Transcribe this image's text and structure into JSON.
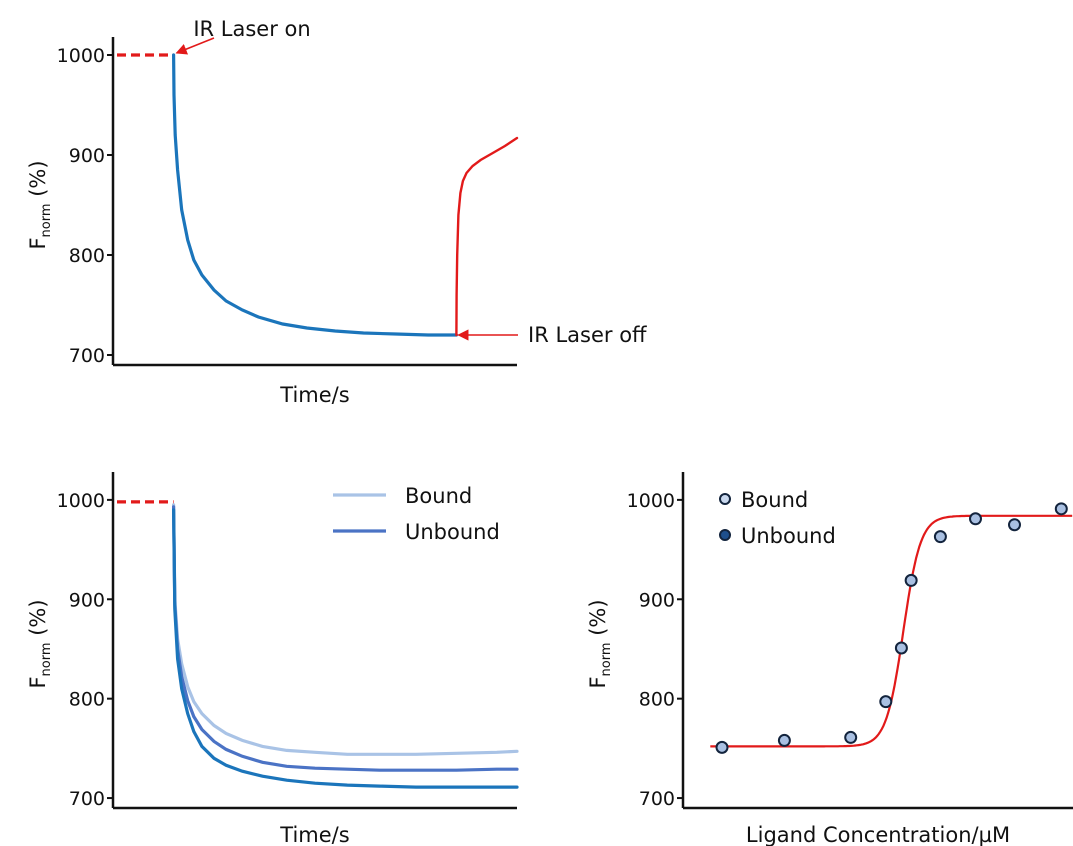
{
  "chart_data": [
    {
      "id": "top",
      "type": "line",
      "title": "",
      "xlabel": "Time/s",
      "ylabel_main": "F",
      "ylabel_sub": "norm",
      "ylabel_suffix": " (%)",
      "ylim": [
        690,
        1010
      ],
      "xlim": [
        0,
        100
      ],
      "yticks": [
        700,
        800,
        900,
        1000
      ],
      "ytick_labels": [
        "700",
        "800",
        "900",
        "1000"
      ],
      "series": [
        {
          "role": "baseline",
          "style": "dashed",
          "color": "#e21a1a",
          "x": [
            1,
            15
          ],
          "y": [
            1000,
            1000
          ]
        },
        {
          "role": "laser-on",
          "color": "#1b75bb",
          "x": [
            15,
            15.1,
            15.4,
            16,
            17,
            18.5,
            20,
            22,
            25,
            28,
            32,
            36,
            42,
            48,
            55,
            62,
            70,
            78,
            85
          ],
          "y": [
            1000,
            960,
            920,
            885,
            845,
            815,
            795,
            780,
            765,
            754,
            745,
            738,
            731,
            727,
            724,
            722,
            721,
            720,
            720
          ]
        },
        {
          "role": "laser-off",
          "color": "#e21a1a",
          "x": [
            85,
            85.05,
            85.2,
            85.5,
            86,
            86.6,
            87.5,
            89,
            91,
            94,
            97,
            100
          ],
          "y": [
            720,
            760,
            800,
            840,
            862,
            874,
            882,
            889,
            895,
            902,
            909,
            917
          ]
        }
      ],
      "annotations": [
        {
          "text": "IR Laser on",
          "x": 15,
          "y": 1000,
          "color": "#e21a1a"
        },
        {
          "text": "IR Laser off",
          "x": 85,
          "y": 720,
          "color": "#e21a1a"
        }
      ]
    },
    {
      "id": "bottom-left",
      "type": "line",
      "title": "",
      "xlabel": "Time/s",
      "ylabel_main": "F",
      "ylabel_sub": "norm",
      "ylabel_suffix": " (%)",
      "ylim": [
        690,
        1020
      ],
      "xlim": [
        0,
        100
      ],
      "yticks": [
        700,
        800,
        900,
        1000
      ],
      "ytick_labels": [
        "700",
        "800",
        "900",
        "1000"
      ],
      "legend": [
        {
          "label": "Bound",
          "color": "#a9c3e6"
        },
        {
          "label": "Unbound",
          "color": "#4b73c5"
        }
      ],
      "series": [
        {
          "role": "baseline",
          "style": "dashed",
          "color": "#e21a1a",
          "x": [
            1,
            15
          ],
          "y": [
            998,
            998
          ]
        },
        {
          "name": "Bound",
          "color": "#a9c3e6",
          "x": [
            15,
            15.3,
            16,
            17,
            18.5,
            20,
            22,
            25,
            28,
            32,
            37,
            43,
            50,
            58,
            66,
            75,
            85,
            95,
            100
          ],
          "y": [
            995,
            900,
            860,
            835,
            812,
            797,
            785,
            773,
            765,
            758,
            752,
            748,
            746,
            744,
            744,
            744,
            745,
            746,
            747
          ]
        },
        {
          "name": "Unbound",
          "color": "#4b73c5",
          "x": [
            15,
            15.3,
            16,
            17,
            18.5,
            20,
            22,
            25,
            28,
            32,
            37,
            43,
            50,
            58,
            66,
            75,
            85,
            95,
            100
          ],
          "y": [
            993,
            895,
            850,
            822,
            798,
            782,
            769,
            757,
            749,
            742,
            736,
            732,
            730,
            729,
            728,
            728,
            728,
            729,
            729
          ]
        },
        {
          "role": "third",
          "color": "#1b75bb",
          "x": [
            15,
            15.3,
            16,
            17,
            18.5,
            20,
            22,
            25,
            28,
            32,
            37,
            43,
            50,
            58,
            66,
            75,
            85,
            95,
            100
          ],
          "y": [
            990,
            890,
            840,
            810,
            785,
            767,
            752,
            740,
            733,
            727,
            722,
            718,
            715,
            713,
            712,
            711,
            711,
            711,
            711
          ]
        }
      ]
    },
    {
      "id": "bottom-right",
      "type": "scatter",
      "title": "",
      "xlabel": "Ligand Concentration/µM",
      "ylabel_main": "F",
      "ylabel_sub": "norm",
      "ylabel_suffix": " (%)",
      "ylim": [
        690,
        1020
      ],
      "xlim": [
        0,
        100
      ],
      "yticks": [
        700,
        800,
        900,
        1000
      ],
      "ytick_labels": [
        "700",
        "800",
        "900",
        "1000"
      ],
      "legend": [
        {
          "label": "Bound",
          "fill": "#c9d8ee"
        },
        {
          "label": "Unbound",
          "fill": "#1e4f8c"
        }
      ],
      "fit": {
        "color": "#e21a1a",
        "bottom": 752,
        "top": 984,
        "x50": 56.5,
        "slope": 2.2,
        "xstart": 7,
        "xend": 100
      },
      "points": {
        "fill": "#a9c0e2",
        "x": [
          10,
          26,
          43,
          52,
          56,
          58.5,
          66,
          75,
          85,
          97
        ],
        "y": [
          751,
          758,
          761,
          797,
          851,
          919,
          963,
          981,
          975,
          991
        ]
      }
    }
  ]
}
